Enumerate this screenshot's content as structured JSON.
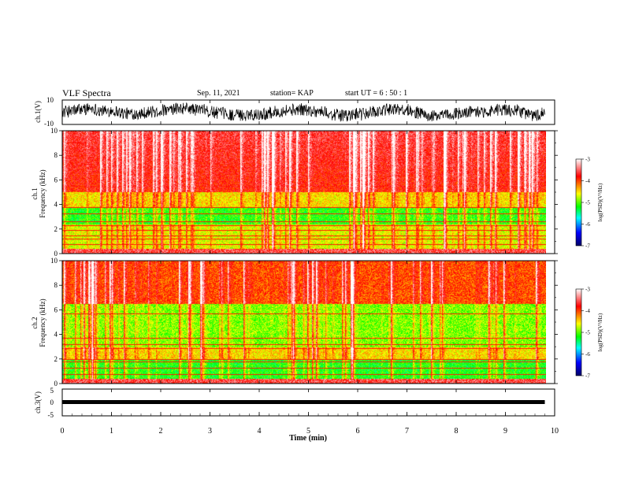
{
  "header": {
    "title": "VLF Spectra",
    "date": "Sep. 11, 2021",
    "station": "station= KAP",
    "start": "start  UT =  6 : 50 : 1"
  },
  "chart_data": [
    {
      "type": "line",
      "panel": "ch1-waveform",
      "ylabel": "ch.1(V)",
      "ylim": [
        -10,
        10
      ],
      "yticks": [
        "10",
        "-10"
      ],
      "xlim": [
        0,
        10
      ],
      "data_extent_min": 9.8,
      "series": [
        {
          "values_description_free": true,
          "baseline": 0,
          "amplitude": 8
        }
      ]
    },
    {
      "type": "heatmap",
      "panel": "ch1-spectrogram",
      "ylabel": "ch.1\nFrequency (kHz)",
      "ylabel_line1": "ch.1",
      "ylabel_line2": "Frequency (kHz)",
      "ylim": [
        0,
        10
      ],
      "yticks": [
        "0",
        "2",
        "4",
        "6",
        "8",
        "10"
      ],
      "xlim": [
        0,
        10
      ],
      "data_extent_min": 9.8,
      "colorbar": {
        "label": "log(PSD)(V²/Hz)",
        "min": -7,
        "max": -3,
        "ticks": [
          "-3",
          "-4",
          "-5",
          "-6",
          "-7"
        ]
      },
      "lines_khz": [
        0.8,
        1.2,
        1.5,
        1.9,
        2.3,
        2.6,
        3.3,
        3.8,
        5.5
      ]
    },
    {
      "type": "heatmap",
      "panel": "ch2-spectrogram",
      "ylabel_line1": "ch.2",
      "ylabel_line2": "Frequency (kHz)",
      "ylim": [
        0,
        10
      ],
      "yticks": [
        "0",
        "2",
        "4",
        "6",
        "8",
        "10"
      ],
      "xlim": [
        0,
        10
      ],
      "data_extent_min": 9.8,
      "colorbar": {
        "label": "log(PSD)(V²/Hz)",
        "min": -7,
        "max": -3,
        "ticks": [
          "-3",
          "-4",
          "-5",
          "-6",
          "-7"
        ]
      },
      "lines_khz": [
        0.8,
        1.3,
        1.8,
        2.0,
        2.9,
        3.2,
        3.7,
        5.7
      ]
    },
    {
      "type": "line",
      "panel": "ch3-waveform",
      "ylabel": "ch.3(V)",
      "ylim": [
        -5,
        5
      ],
      "yticks": [
        "5",
        "0",
        "-5"
      ],
      "xlim": [
        0,
        10
      ],
      "data_extent_min": 9.8,
      "series": [
        {
          "level": -1.5
        }
      ]
    }
  ],
  "xaxis": {
    "label": "Time (min)",
    "ticks": [
      "0",
      "1",
      "2",
      "3",
      "4",
      "5",
      "6",
      "7",
      "8",
      "9",
      "10"
    ]
  },
  "colors": {
    "colormap": [
      "#000066",
      "#0000ff",
      "#00ffff",
      "#00ff00",
      "#ffff00",
      "#ff0000",
      "#ffffff"
    ]
  }
}
